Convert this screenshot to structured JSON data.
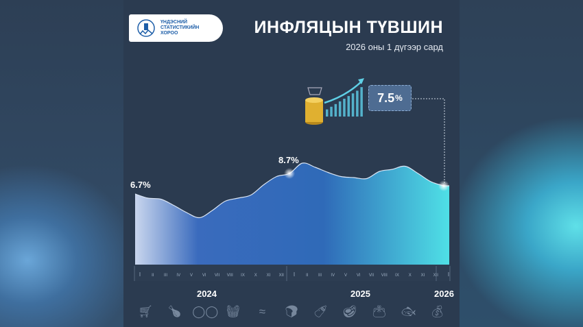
{
  "logo": {
    "text": [
      "ҮНДЭСНИЙ",
      "СТАТИСТИКИЙН",
      "ХОРОО"
    ]
  },
  "header": {
    "title": "ИНФЛЯЦЫН ТҮВШИН",
    "subtitle": "2026 оны 1 дүгээр сард"
  },
  "callout": {
    "value": "7.5",
    "unit": "%"
  },
  "chart_data": {
    "type": "area",
    "title": "ИНФЛЯЦЫН ТҮВШИН",
    "subtitle": "2026 оны 1 дүгээр сард",
    "years": [
      "2024",
      "2025",
      "2026"
    ],
    "month_labels": [
      "I",
      "II",
      "III",
      "IV",
      "V",
      "VI",
      "VII",
      "VIII",
      "IX",
      "X",
      "XI",
      "XII",
      "I",
      "II",
      "III",
      "IV",
      "V",
      "VI",
      "VII",
      "VIII",
      "IX",
      "X",
      "XI",
      "XII",
      "I"
    ],
    "values": [
      6.7,
      6.3,
      6.2,
      5.6,
      4.9,
      4.4,
      5.1,
      6.0,
      6.3,
      6.6,
      7.6,
      8.4,
      8.7,
      9.7,
      9.3,
      8.8,
      8.4,
      8.3,
      8.2,
      8.9,
      9.1,
      9.4,
      8.7,
      7.9,
      7.5
    ],
    "data_labels": [
      {
        "index": 0,
        "text": "6.7%"
      },
      {
        "index": 12,
        "text": "8.7%"
      },
      {
        "index": 24,
        "text": "7.5%"
      }
    ],
    "unit": "%",
    "colors": {
      "start": "#c9d6ee",
      "mid": "#2f63b4",
      "end": "#4fe0e6",
      "background": "#2b3b50"
    }
  },
  "icons": [
    "shopping-cart-icon",
    "chicken-icon",
    "eggs-icon",
    "basket-icon",
    "sausage-icon",
    "bread-icon",
    "bottles-icon",
    "meat-icon",
    "wallet-icon",
    "canned-fish-icon",
    "money-bag-icon"
  ]
}
